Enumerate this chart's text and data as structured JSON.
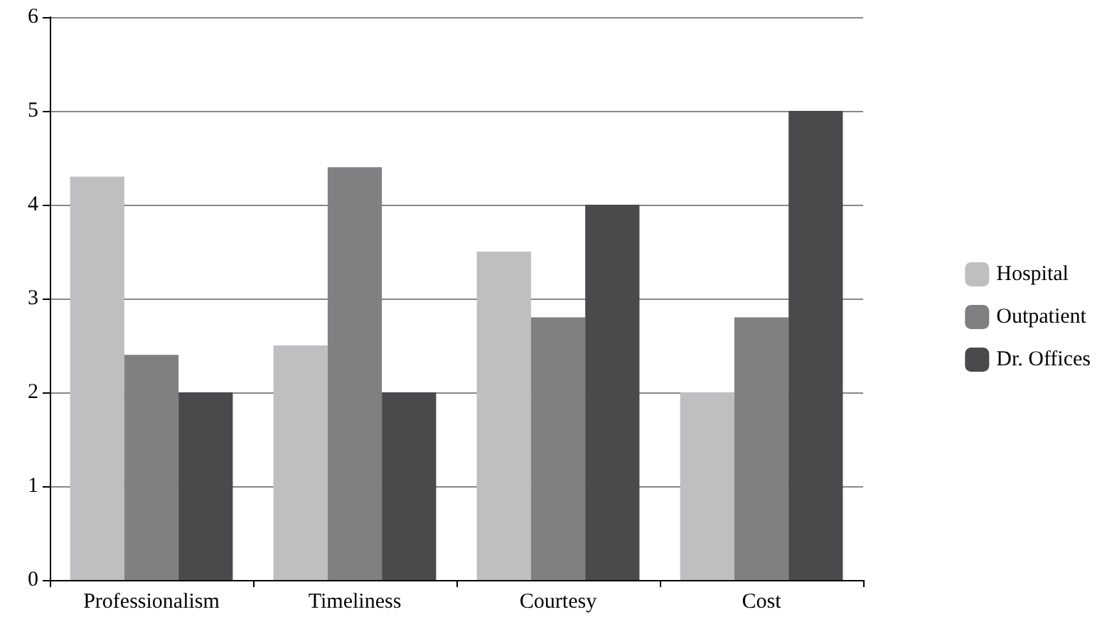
{
  "chart_data": {
    "type": "bar",
    "categories": [
      "Professionalism",
      "Timeliness",
      "Courtesy",
      "Cost"
    ],
    "series": [
      {
        "name": "Hospital",
        "color": "#bfbfc1",
        "values": [
          4.3,
          2.5,
          3.5,
          2
        ]
      },
      {
        "name": "Outpatient",
        "color": "#808083",
        "values": [
          2.4,
          4.4,
          2.8,
          2.8
        ]
      },
      {
        "name": "Dr. Offices",
        "color": "#4a4a4c",
        "values": [
          2,
          2,
          4,
          5
        ]
      }
    ],
    "ylim": [
      0,
      6
    ],
    "yticks": [
      0,
      1,
      2,
      3,
      4,
      5,
      6
    ],
    "grid": "y",
    "legend": "right"
  }
}
